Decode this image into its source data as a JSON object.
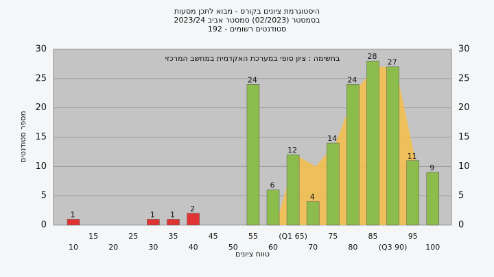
{
  "chart_data": {
    "type": "bar",
    "title": "היסטוגרמת ציונים בקורס - מבוא לתכן מסעות",
    "subtitle": "בסמסטר  (02/2023)  סמסטר אביב  2023/24",
    "subtitle2": "סטודנטים רשומים - 192",
    "annotation": "בחשימה : ציון סופי במערכת האקדמית במחשב המרכזי",
    "xlabel": "טווח ציונים",
    "ylabel": "מספר סטודנטים",
    "categories": [
      "10",
      "15",
      "20",
      "25",
      "30",
      "35",
      "40",
      "45",
      "50",
      "55",
      "60",
      "(Q1 65)",
      "70",
      "75",
      "80",
      "85",
      "(Q3 90)",
      "95",
      "100"
    ],
    "values": [
      1,
      0,
      0,
      0,
      1,
      1,
      2,
      0,
      0,
      24,
      6,
      12,
      4,
      14,
      24,
      28,
      27,
      11,
      9
    ],
    "colors": [
      "#e03434",
      "#e03434",
      "#e03434",
      "#e03434",
      "#e03434",
      "#e03434",
      "#e03434",
      "#e03434",
      "#e03434",
      "#8cbc4c",
      "#8cbc4c",
      "#8cbc4c",
      "#8cbc4c",
      "#8cbc4c",
      "#8cbc4c",
      "#8cbc4c",
      "#8cbc4c",
      "#8cbc4c",
      "#8cbc4c"
    ],
    "area": {
      "color": "#f5c04a",
      "values": [
        null,
        null,
        null,
        null,
        null,
        null,
        null,
        null,
        null,
        null,
        0,
        12,
        10,
        14,
        23,
        27,
        27,
        11,
        null
      ]
    },
    "ylim": [
      0,
      30
    ],
    "yticks": [
      0,
      5,
      10,
      15,
      20,
      25,
      30
    ],
    "grid": true
  }
}
